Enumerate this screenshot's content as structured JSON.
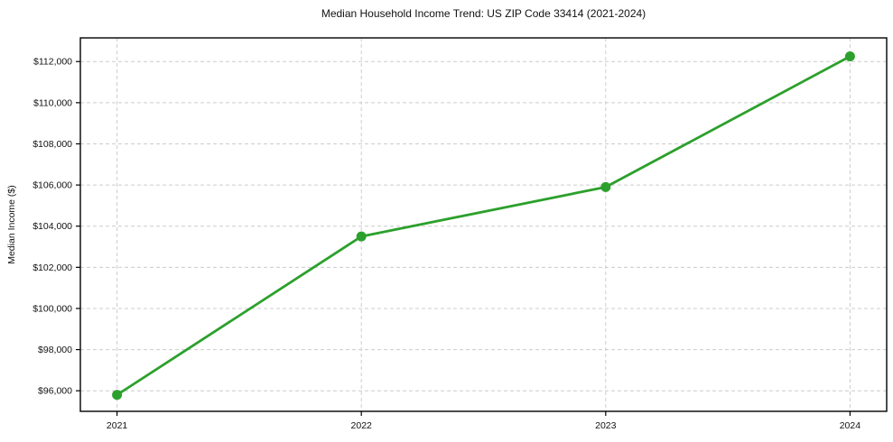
{
  "chart_data": {
    "type": "line",
    "title": "Median Household Income Trend: US ZIP Code 33414 (2021-2024)",
    "xlabel": "",
    "ylabel": "Median Income ($)",
    "x": [
      2021,
      2022,
      2023,
      2024
    ],
    "values": [
      95800,
      103500,
      105900,
      112250
    ],
    "xticks": {
      "values": [
        2021,
        2022,
        2023,
        2024
      ],
      "labels": [
        "2021",
        "2022",
        "2023",
        "2024"
      ]
    },
    "yticks": {
      "values": [
        96000,
        98000,
        100000,
        102000,
        104000,
        106000,
        108000,
        110000,
        112000
      ],
      "labels": [
        "$96,000",
        "$98,000",
        "$100,000",
        "$102,000",
        "$104,000",
        "$106,000",
        "$108,000",
        "$110,000",
        "$112,000"
      ]
    },
    "xlim": [
      2020.85,
      2024.15
    ],
    "ylim": [
      95000,
      113150
    ],
    "grid": true,
    "grid_style": "dashed",
    "grid_color": "#cccccc",
    "legend_position": "none",
    "line_color": "#2ca02c",
    "marker": "circle",
    "marker_radius": 5.5,
    "line_width": 2.8,
    "background_color": "#ffffff"
  }
}
